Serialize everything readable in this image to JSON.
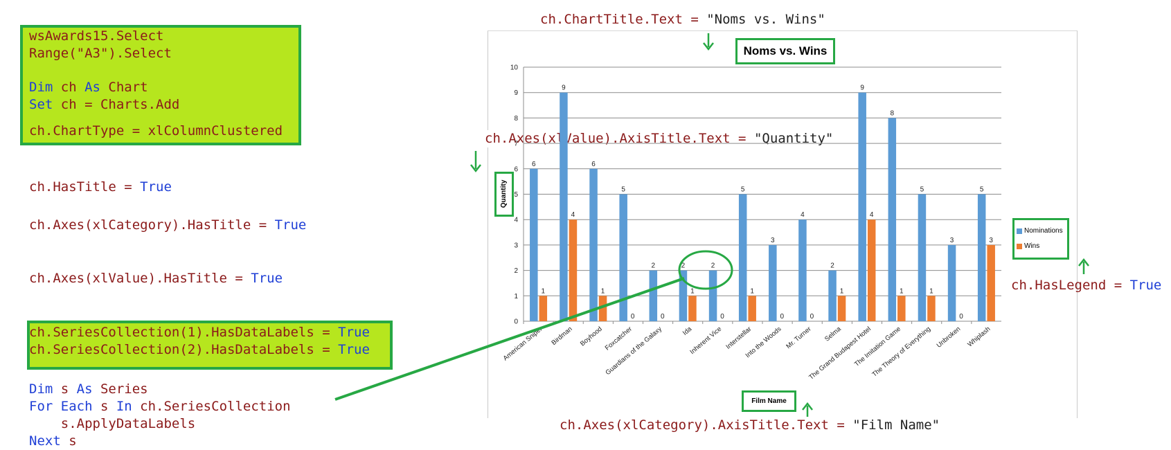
{
  "code": {
    "block1": {
      "line1": "wsAwards15.Select",
      "line2": "Range(\"A3\").Select",
      "line3_kw1": "Dim",
      "line3_mid": " ch ",
      "line3_kw2": "As",
      "line3_end": " Chart",
      "line4_kw": "Set",
      "line4_end": " ch = Charts.Add",
      "line5": "ch.ChartType = xlColumnClustered"
    },
    "has_title": {
      "prefix": "ch.HasTitle = ",
      "value": "True"
    },
    "category_has_title": {
      "prefix": "ch.Axes(xlCategory).HasTitle = ",
      "value": "True"
    },
    "value_has_title": {
      "prefix": "ch.Axes(xlValue).HasTitle = ",
      "value": "True"
    },
    "block2": {
      "line1_prefix": "ch.SeriesCollection(1).HasDataLabels = ",
      "line1_value": "True",
      "line2_prefix": "ch.SeriesCollection(2).HasDataLabels = ",
      "line2_value": "True"
    },
    "loop": {
      "l1_kw1": "Dim",
      "l1_mid": " s ",
      "l1_kw2": "As",
      "l1_end": " Series",
      "l2_kw1": "For Each",
      "l2_mid": " s ",
      "l2_kw2": "In",
      "l2_end": " ch.SeriesCollection",
      "l3": "    s.ApplyDataLabels",
      "l4_kw": "Next",
      "l4_end": " s"
    },
    "chart_title_code": {
      "prefix": "ch.ChartTitle.Text = ",
      "value": "\"Noms vs. Wins\""
    },
    "value_axis_code": {
      "prefix": "ch.Axes(xlValue).AxisTitle.Text = ",
      "value": "\"Quantity\""
    },
    "category_axis_code": {
      "prefix": "ch.Axes(xlCategory).AxisTitle.Text = ",
      "value": "\"Film Name\""
    },
    "legend_code": {
      "prefix": "ch.HasLegend = ",
      "value": "True"
    }
  },
  "colors": {
    "nominations": "#5b9bd5",
    "wins": "#ed7d31",
    "highlight": "#b6e61e",
    "green": "#27a844",
    "gridline": "#8c8c8c"
  },
  "chart_data": {
    "type": "bar",
    "title": "Noms vs. Wins",
    "xlabel": "Film Name",
    "ylabel": "Quantity",
    "ylim": [
      0,
      10
    ],
    "yticks": [
      "0",
      "1",
      "2",
      "3",
      "4",
      "5",
      "6",
      "7",
      "8",
      "9",
      "10"
    ],
    "categories": [
      "American Sniper",
      "Birdman",
      "Boyhood",
      "Foxcatcher",
      "Guardians of the Galaxy",
      "Ida",
      "Inherent Vice",
      "Interstellar",
      "Into the Woods",
      "Mr. Turner",
      "Selma",
      "The Grand Budapest Hotel",
      "The Imitation Game",
      "The Theory of Everything",
      "Unbroken",
      "Whiplash"
    ],
    "series": [
      {
        "name": "Nominations",
        "values": [
          6,
          9,
          6,
          5,
          2,
          2,
          2,
          5,
          3,
          4,
          2,
          9,
          8,
          5,
          3,
          5
        ]
      },
      {
        "name": "Wins",
        "values": [
          1,
          4,
          1,
          0,
          0,
          1,
          0,
          1,
          0,
          0,
          1,
          4,
          1,
          1,
          0,
          3
        ]
      }
    ],
    "grid": true,
    "legend": "right"
  }
}
